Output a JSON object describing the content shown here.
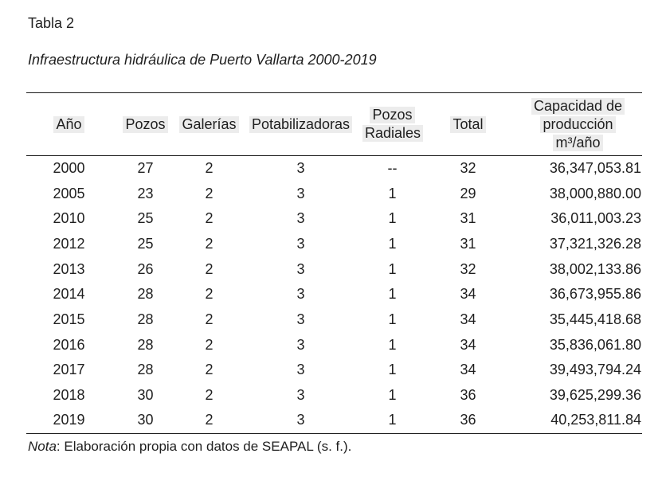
{
  "page": {
    "background": "#ffffff",
    "text_color": "#1f1f1f",
    "rule_color": "#1a1a1a",
    "header_highlight_color": "#ececec"
  },
  "table_meta": {
    "label": "Tabla 2",
    "title": "Infraestructura hidráulica de Puerto Vallarta 2000-2019"
  },
  "table": {
    "headers": [
      {
        "id": "ano",
        "lines": [
          "Año"
        ]
      },
      {
        "id": "pozos",
        "lines": [
          "Pozos"
        ]
      },
      {
        "id": "galerias",
        "lines": [
          "Galerías"
        ]
      },
      {
        "id": "potabilizadoras",
        "lines": [
          "Potabilizadoras"
        ]
      },
      {
        "id": "pozos-radiales",
        "lines": [
          "Pozos",
          "Radiales"
        ]
      },
      {
        "id": "total",
        "lines": [
          "Total"
        ]
      },
      {
        "id": "capacidad",
        "lines": [
          "Capacidad de",
          "producción",
          "m³/año"
        ]
      }
    ],
    "rows": [
      [
        "2000",
        "27",
        "2",
        "3",
        "--",
        "32",
        "36,347,053.81"
      ],
      [
        "2005",
        "23",
        "2",
        "3",
        "1",
        "29",
        "38,000,880.00"
      ],
      [
        "2010",
        "25",
        "2",
        "3",
        "1",
        "31",
        "36,011,003.23"
      ],
      [
        "2012",
        "25",
        "2",
        "3",
        "1",
        "31",
        "37,321,326.28"
      ],
      [
        "2013",
        "26",
        "2",
        "3",
        "1",
        "32",
        "38,002,133.86"
      ],
      [
        "2014",
        "28",
        "2",
        "3",
        "1",
        "34",
        "36,673,955.86"
      ],
      [
        "2015",
        "28",
        "2",
        "3",
        "1",
        "34",
        "35,445,418.68"
      ],
      [
        "2016",
        "28",
        "2",
        "3",
        "1",
        "34",
        "35,836,061.80"
      ],
      [
        "2017",
        "28",
        "2",
        "3",
        "1",
        "34",
        "39,493,794.24"
      ],
      [
        "2018",
        "30",
        "2",
        "3",
        "1",
        "36",
        "39,625,299.36"
      ],
      [
        "2019",
        "30",
        "2",
        "3",
        "1",
        "36",
        "40,253,811.84"
      ]
    ],
    "note": {
      "label": "Nota",
      "text": ": Elaboración propia con datos de SEAPAL (s. f.)."
    }
  }
}
